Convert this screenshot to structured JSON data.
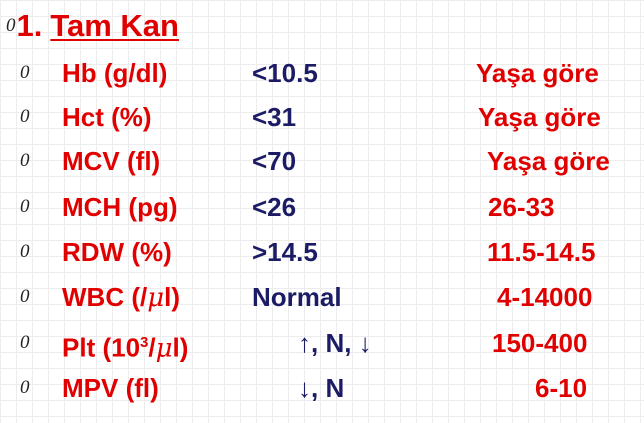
{
  "title": {
    "bullet": "0",
    "number": "1.",
    "text": "Tam Kan"
  },
  "rows": [
    {
      "bullet": "0",
      "parameter": "Hb (g/dl)",
      "criterion": "<10.5",
      "normal": "Yaşa göre"
    },
    {
      "bullet": "0",
      "parameter": "Hct (%)",
      "criterion": "<31",
      "normal": "Yaşa göre"
    },
    {
      "bullet": "0",
      "parameter": "MCV (fl)",
      "criterion": "<70",
      "normal": "Yaşa göre"
    },
    {
      "bullet": "0",
      "parameter": "MCH (pg)",
      "criterion": "<26",
      "normal": "26-33"
    },
    {
      "bullet": "0",
      "parameter": "RDW (%)",
      "criterion": ">14.5",
      "normal": "11.5-14.5"
    },
    {
      "bullet": "0",
      "parameter_prefix": "WBC (/",
      "parameter_mu": "μ",
      "parameter_suffix": "l)",
      "criterion": "Normal",
      "normal": "4-14000"
    },
    {
      "bullet": "0",
      "parameter_prefix": "Plt (10",
      "parameter_sup": "3",
      "parameter_slash": "/",
      "parameter_mu": "μ",
      "parameter_suffix": "l)",
      "criterion": "↑, N, ↓",
      "normal": "150-400"
    },
    {
      "bullet": "0",
      "parameter": "MPV (fl)",
      "criterion": "↓, N",
      "normal": "6-10"
    }
  ],
  "colors": {
    "heading_red": "#e10000",
    "criterion_navy": "#1c1c66",
    "bullet_dark": "#222222",
    "grid": "#ececec"
  }
}
